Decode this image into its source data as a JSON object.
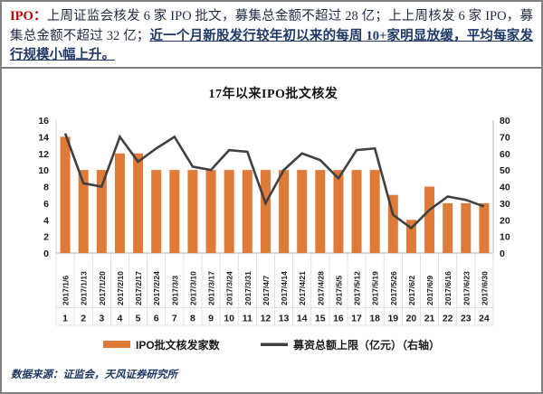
{
  "commentary": {
    "label": "IPO：",
    "text": "上周证监会核发 6 家 IPO 批文，募集总金额不超过 28 亿；上上周核发 6 家 IPO，募集总金额不超过 32 亿；",
    "highlight": "近一个月新股发行较年初以来的每周 10+家明显放缓，平均每家发行规模小幅上升。"
  },
  "chart_data": {
    "type": "bar+line",
    "title": "17年以来IPO批文核发",
    "categories": [
      "2017/1/6",
      "2017/1/13",
      "2017/1/20",
      "2017/2/10",
      "2017/2/17",
      "2017/2/24",
      "2017/3/3",
      "2017/3/10",
      "2017/3/17",
      "2017/3/24",
      "2017/3/31",
      "2017/4/7",
      "2017/4/14",
      "2017/4/21",
      "2017/4/28",
      "2017/5/5",
      "2017/5/12",
      "2017/5/19",
      "2017/5/26",
      "2017/6/2",
      "2017/6/9",
      "2017/6/16",
      "2017/6/23",
      "2017/6/30"
    ],
    "index_labels": [
      "1",
      "2",
      "3",
      "4",
      "5",
      "6",
      "7",
      "8",
      "9",
      "10",
      "11",
      "12",
      "13",
      "14",
      "15",
      "16",
      "17",
      "18",
      "19",
      "20",
      "21",
      "22",
      "23",
      "24"
    ],
    "series": [
      {
        "name": "IPO批文核发家数",
        "type": "bar",
        "axis": "left",
        "color": "#E07A39",
        "values": [
          14,
          10,
          10,
          12,
          12,
          10,
          10,
          10,
          10,
          10,
          10,
          10,
          10,
          10,
          10,
          10,
          10,
          10,
          7,
          4,
          8,
          6,
          6,
          6
        ]
      },
      {
        "name": "募资总额上限（亿元）（右轴）",
        "type": "line",
        "axis": "right",
        "color": "#404040",
        "values": [
          72,
          42,
          40,
          70,
          55,
          63,
          70,
          52,
          50,
          62,
          61,
          30,
          50,
          60,
          56,
          45,
          62,
          63,
          23,
          15,
          26,
          34,
          32,
          28
        ]
      }
    ],
    "left_axis": {
      "min": 0,
      "max": 16,
      "step": 2
    },
    "right_axis": {
      "min": 0,
      "max": 80,
      "step": 10
    },
    "grid": "off",
    "legend_position": "bottom"
  },
  "footer": {
    "source": "数据来源：证监会，天风证券研究所"
  },
  "colors": {
    "accent_red": "#c00000",
    "body_text": "#1f2a44",
    "highlight_text": "#1f3864",
    "bar": "#E07A39",
    "line": "#404040",
    "axis_line": "#bfbfbf",
    "separator": "#d9d9d9",
    "border": "#808080"
  }
}
